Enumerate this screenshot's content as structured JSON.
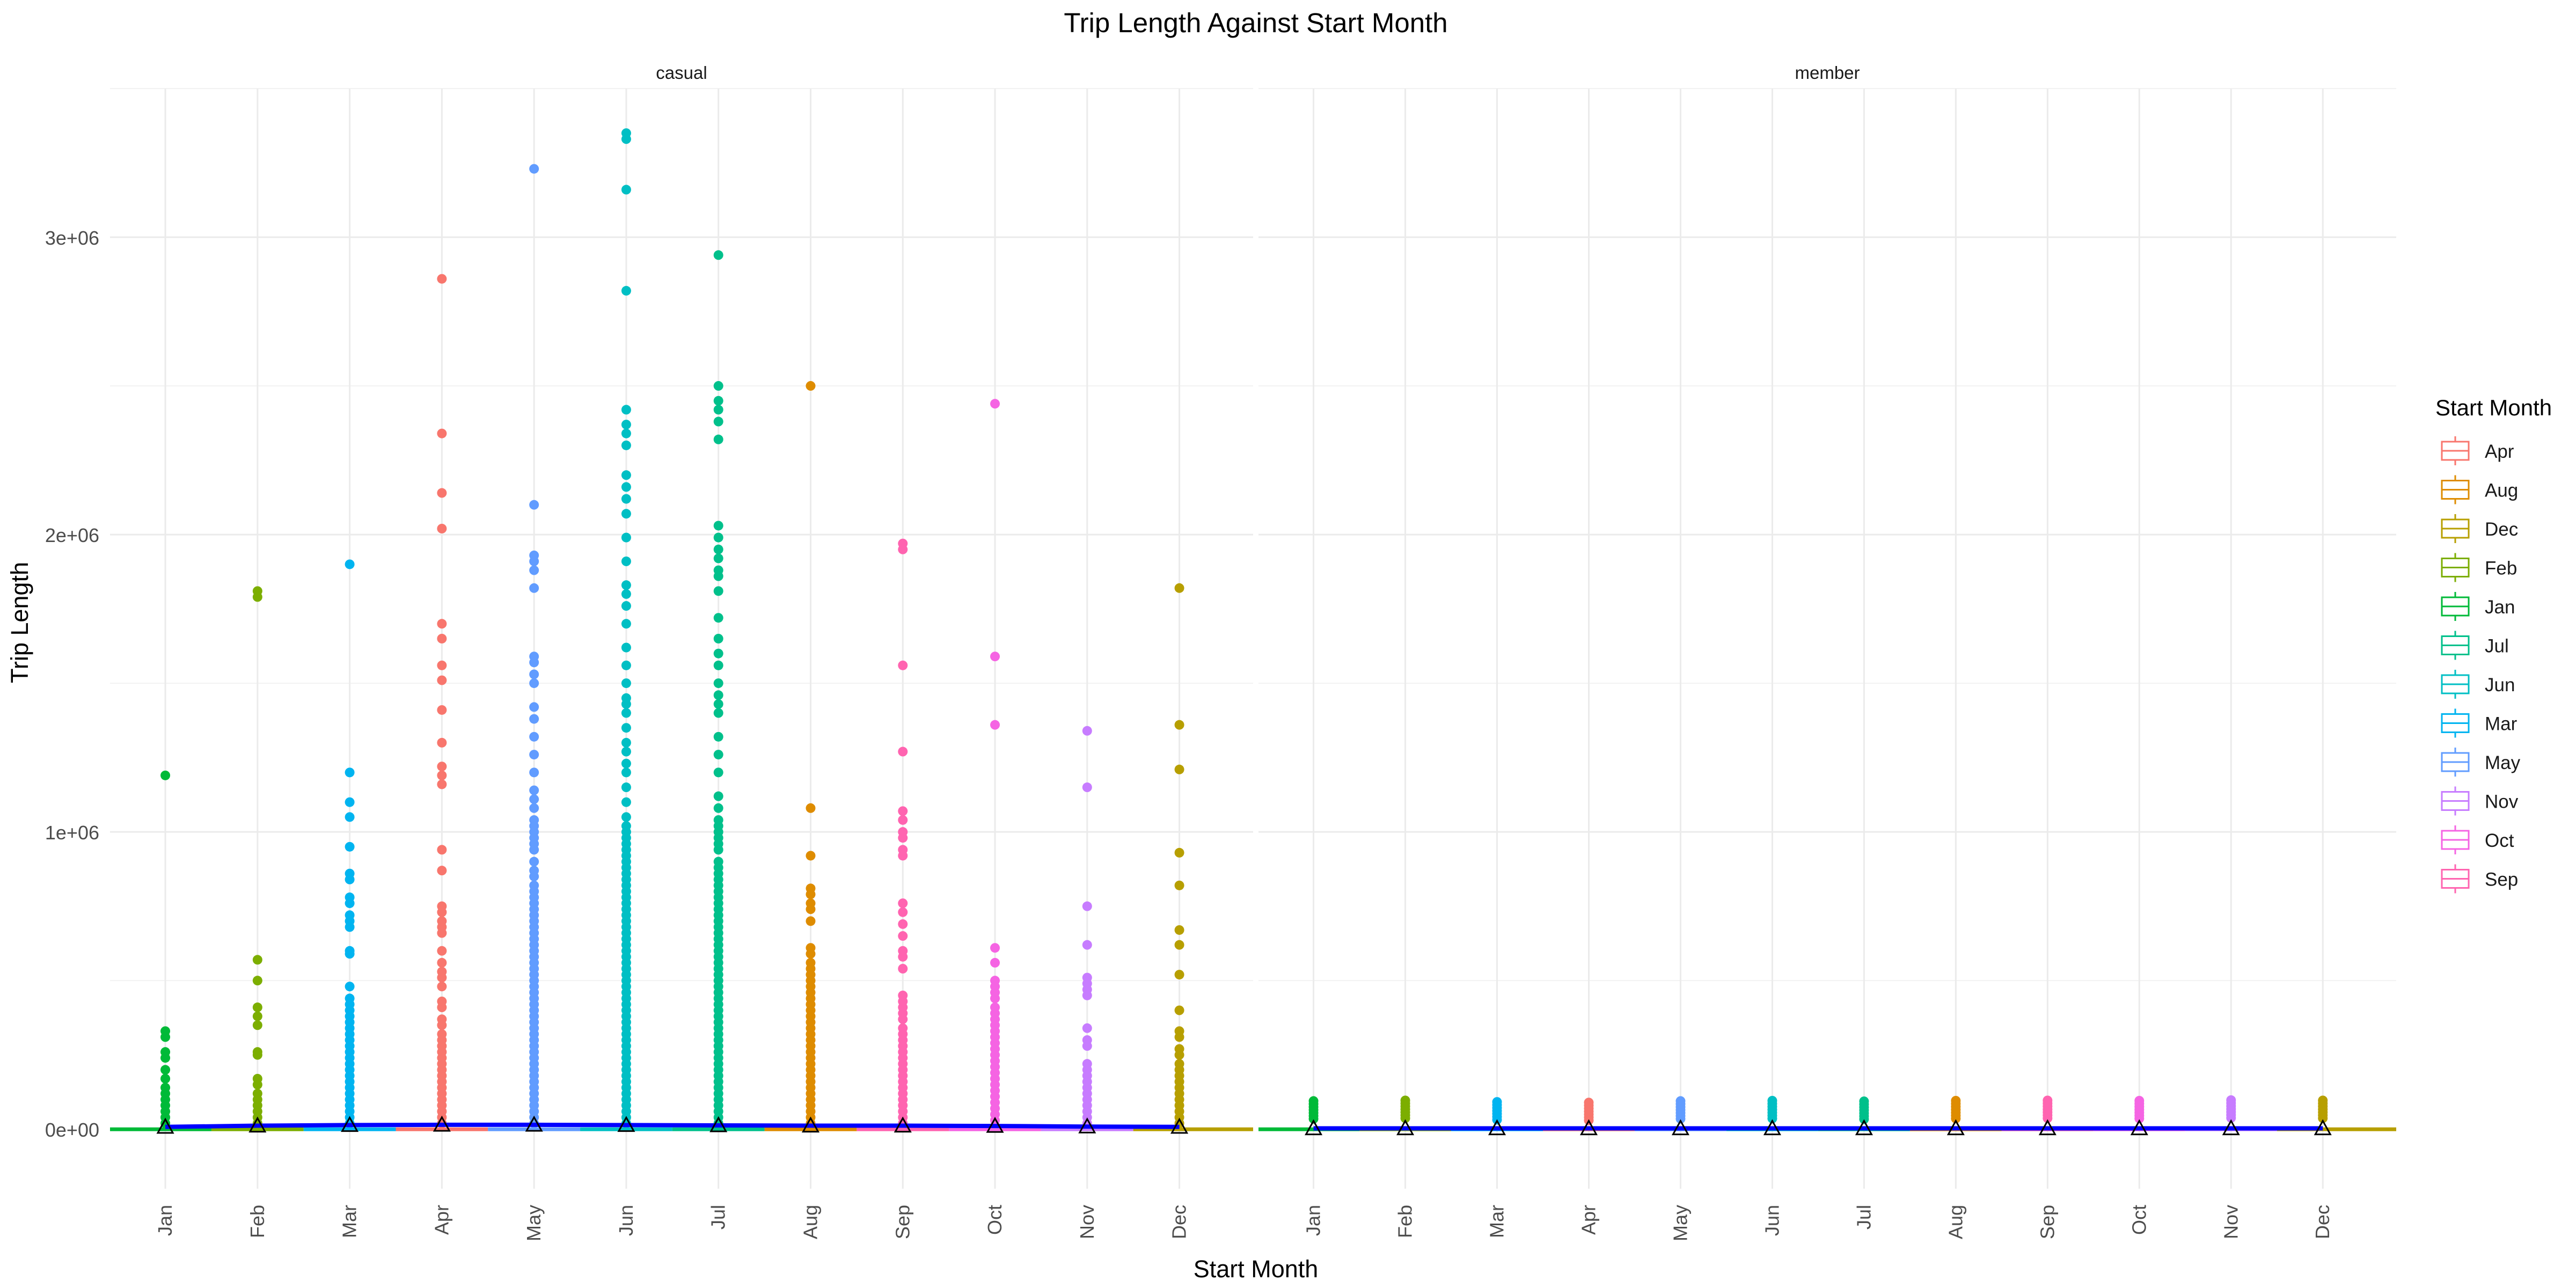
{
  "chart_data": {
    "type": "scatter",
    "title": "Trip Length Against Start Month",
    "xlabel": "Start Month",
    "ylabel": "Trip Length",
    "ylim": [
      -200000,
      3500000
    ],
    "y_ticks": [
      0,
      1000000,
      2000000,
      3000000
    ],
    "y_tick_labels": [
      "0e+00",
      "1e+06",
      "2e+06",
      "3e+06"
    ],
    "categories": [
      "Jan",
      "Feb",
      "Mar",
      "Apr",
      "May",
      "Jun",
      "Jul",
      "Aug",
      "Sep",
      "Oct",
      "Nov",
      "Dec"
    ],
    "panels": [
      "casual",
      "member"
    ],
    "grid": true,
    "legend": {
      "title": "Start Month",
      "position": "right",
      "entries": [
        "Apr",
        "Aug",
        "Dec",
        "Feb",
        "Jan",
        "Jul",
        "Jun",
        "Mar",
        "May",
        "Nov",
        "Oct",
        "Sep"
      ]
    },
    "colors": {
      "Apr": "#F8766D",
      "Aug": "#DE8C00",
      "Dec": "#B79F00",
      "Feb": "#7CAE00",
      "Jan": "#00BA38",
      "Jul": "#00C08B",
      "Jun": "#00BFC4",
      "Mar": "#00B4F0",
      "May": "#619CFF",
      "Nov": "#C77CFF",
      "Oct": "#F564E3",
      "Sep": "#FF64B0"
    },
    "mean_line_color": "#0000FF",
    "outliers": {
      "casual": {
        "Jan": [
          1190000,
          330000,
          310000,
          260000,
          240000,
          200000,
          170000,
          140000,
          120000,
          100000,
          80000,
          60000,
          40000,
          20000
        ],
        "Feb": [
          1810000,
          1790000,
          570000,
          500000,
          410000,
          380000,
          350000,
          260000,
          250000,
          170000,
          150000,
          120000,
          100000,
          80000,
          60000,
          40000,
          20000
        ],
        "Mar": [
          1900000,
          1200000,
          1100000,
          1050000,
          950000,
          860000,
          840000,
          780000,
          760000,
          720000,
          700000,
          680000,
          600000,
          590000,
          480000,
          440000,
          420000,
          400000,
          380000,
          360000,
          340000,
          320000,
          300000,
          280000,
          260000,
          240000,
          220000,
          200000,
          180000,
          160000,
          140000,
          120000,
          100000,
          80000,
          60000,
          40000,
          20000
        ],
        "Apr": [
          2860000,
          2340000,
          2140000,
          2020000,
          1700000,
          1650000,
          1560000,
          1510000,
          1410000,
          1300000,
          1220000,
          1190000,
          1160000,
          940000,
          870000,
          750000,
          730000,
          700000,
          680000,
          660000,
          600000,
          560000,
          530000,
          510000,
          480000,
          430000,
          410000,
          370000,
          350000,
          320000,
          300000,
          280000,
          260000,
          240000,
          220000,
          200000,
          180000,
          160000,
          140000,
          120000,
          100000,
          80000,
          60000,
          40000,
          20000
        ],
        "May": [
          3230000,
          2100000,
          1930000,
          1910000,
          1880000,
          1820000,
          1590000,
          1570000,
          1530000,
          1500000,
          1420000,
          1380000,
          1320000,
          1260000,
          1200000,
          1140000,
          1110000,
          1080000,
          1040000,
          1020000,
          1000000,
          980000,
          960000,
          940000,
          900000,
          870000,
          850000,
          820000,
          800000,
          780000,
          760000,
          740000,
          720000,
          700000,
          680000,
          660000,
          640000,
          620000,
          600000,
          580000,
          560000,
          540000,
          520000,
          500000,
          480000,
          460000,
          440000,
          420000,
          400000,
          380000,
          360000,
          340000,
          320000,
          300000,
          280000,
          260000,
          240000,
          220000,
          200000,
          180000,
          160000,
          140000,
          120000,
          100000,
          80000,
          60000,
          40000,
          20000
        ],
        "Jun": [
          3350000,
          3330000,
          3160000,
          2820000,
          2420000,
          2370000,
          2340000,
          2300000,
          2200000,
          2160000,
          2120000,
          2070000,
          1990000,
          1910000,
          1830000,
          1800000,
          1760000,
          1700000,
          1620000,
          1560000,
          1500000,
          1450000,
          1430000,
          1400000,
          1350000,
          1300000,
          1270000,
          1230000,
          1200000,
          1150000,
          1100000,
          1050000,
          1020000,
          1000000,
          980000,
          960000,
          940000,
          920000,
          900000,
          880000,
          860000,
          840000,
          820000,
          800000,
          780000,
          760000,
          740000,
          720000,
          700000,
          680000,
          660000,
          640000,
          620000,
          600000,
          580000,
          560000,
          540000,
          520000,
          500000,
          480000,
          460000,
          440000,
          420000,
          400000,
          380000,
          360000,
          340000,
          320000,
          300000,
          280000,
          260000,
          240000,
          220000,
          200000,
          180000,
          160000,
          140000,
          120000,
          100000,
          80000,
          60000,
          40000,
          20000
        ],
        "Jul": [
          2940000,
          2500000,
          2450000,
          2420000,
          2380000,
          2320000,
          2030000,
          1990000,
          1950000,
          1920000,
          1880000,
          1860000,
          1810000,
          1720000,
          1650000,
          1600000,
          1560000,
          1500000,
          1460000,
          1430000,
          1400000,
          1320000,
          1260000,
          1200000,
          1120000,
          1080000,
          1040000,
          1020000,
          1000000,
          980000,
          960000,
          940000,
          900000,
          880000,
          860000,
          840000,
          820000,
          800000,
          780000,
          760000,
          740000,
          720000,
          700000,
          680000,
          660000,
          640000,
          620000,
          600000,
          580000,
          560000,
          540000,
          520000,
          500000,
          480000,
          460000,
          440000,
          420000,
          400000,
          380000,
          360000,
          340000,
          320000,
          300000,
          280000,
          260000,
          240000,
          220000,
          200000,
          180000,
          160000,
          140000,
          120000,
          100000,
          80000,
          60000,
          40000,
          20000
        ],
        "Aug": [
          2500000,
          1080000,
          920000,
          810000,
          790000,
          760000,
          740000,
          700000,
          610000,
          590000,
          560000,
          540000,
          520000,
          500000,
          480000,
          460000,
          440000,
          420000,
          400000,
          380000,
          360000,
          340000,
          320000,
          300000,
          280000,
          260000,
          240000,
          220000,
          200000,
          180000,
          160000,
          140000,
          120000,
          100000,
          80000,
          60000,
          40000,
          20000
        ],
        "Sep": [
          1970000,
          1950000,
          1560000,
          1270000,
          1070000,
          1040000,
          1000000,
          980000,
          940000,
          920000,
          760000,
          730000,
          690000,
          650000,
          600000,
          580000,
          540000,
          450000,
          430000,
          410000,
          390000,
          370000,
          340000,
          320000,
          300000,
          280000,
          260000,
          240000,
          220000,
          200000,
          180000,
          160000,
          140000,
          120000,
          100000,
          80000,
          60000,
          40000,
          20000
        ],
        "Oct": [
          2440000,
          1590000,
          1360000,
          610000,
          560000,
          500000,
          480000,
          460000,
          440000,
          410000,
          390000,
          370000,
          350000,
          330000,
          310000,
          290000,
          270000,
          250000,
          230000,
          210000,
          190000,
          170000,
          150000,
          130000,
          110000,
          90000,
          70000,
          50000,
          30000,
          10000
        ],
        "Nov": [
          1340000,
          1150000,
          750000,
          620000,
          510000,
          490000,
          470000,
          450000,
          340000,
          300000,
          280000,
          220000,
          200000,
          180000,
          160000,
          140000,
          120000,
          100000,
          80000,
          60000,
          40000,
          20000
        ],
        "Dec": [
          1820000,
          1360000,
          1210000,
          930000,
          820000,
          670000,
          620000,
          520000,
          400000,
          330000,
          310000,
          270000,
          250000,
          220000,
          200000,
          180000,
          160000,
          140000,
          120000,
          100000,
          80000,
          60000,
          40000,
          20000
        ]
      },
      "member": {
        "Jan": [
          95000,
          85000,
          75000,
          65000,
          55000,
          45000,
          35000
        ],
        "Feb": [
          97000,
          87000,
          77000,
          67000,
          57000,
          47000,
          37000
        ],
        "Mar": [
          92000,
          82000,
          72000,
          62000,
          52000,
          42000,
          32000
        ],
        "Apr": [
          90000,
          80000,
          70000,
          60000,
          50000,
          40000,
          30000
        ],
        "May": [
          95000,
          85000,
          75000,
          65000,
          55000,
          45000,
          35000
        ],
        "Jun": [
          96000,
          86000,
          76000,
          66000,
          56000,
          46000,
          36000
        ],
        "Jul": [
          94000,
          84000,
          74000,
          64000,
          54000,
          44000,
          34000
        ],
        "Aug": [
          96000,
          86000,
          76000,
          66000,
          56000,
          46000,
          36000
        ],
        "Sep": [
          97000,
          87000,
          77000,
          67000,
          57000,
          47000,
          37000
        ],
        "Oct": [
          96000,
          86000,
          76000,
          66000,
          56000,
          46000,
          36000
        ],
        "Nov": [
          98000,
          88000,
          78000,
          68000,
          58000,
          48000,
          38000
        ],
        "Dec": [
          97000,
          87000,
          77000,
          67000,
          57000,
          47000,
          37000
        ]
      }
    },
    "means": {
      "casual": [
        8000,
        12000,
        14000,
        15000,
        15000,
        14000,
        13000,
        12000,
        12000,
        11000,
        9000,
        8000
      ],
      "member": [
        3000,
        3000,
        3000,
        3000,
        3000,
        3000,
        3000,
        3000,
        3000,
        3000,
        3000,
        3000
      ]
    }
  }
}
